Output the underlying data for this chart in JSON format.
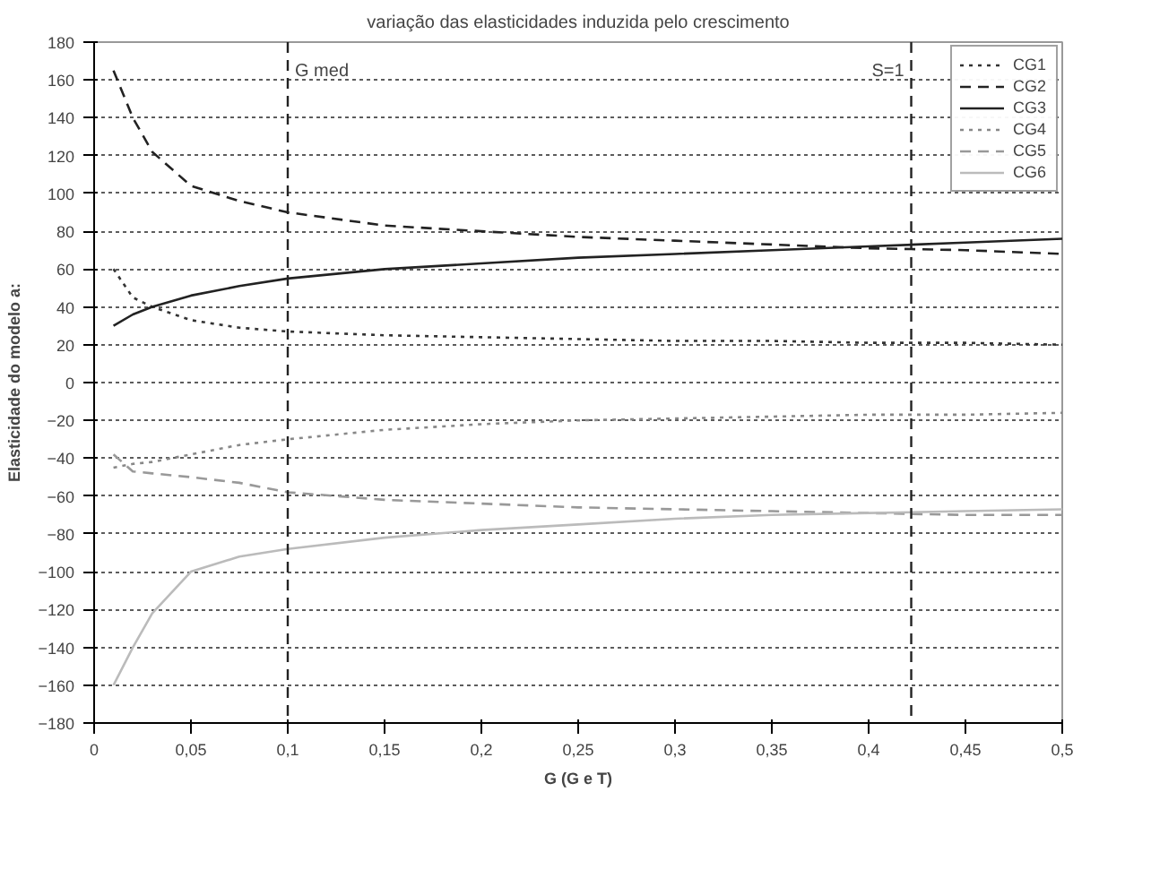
{
  "chart_data": {
    "type": "line",
    "title": "variação das elasticidades induzida pelo crescimento",
    "xlabel": "G (G e T)",
    "ylabel": "Elasticidade do modelo a:",
    "x": [
      0.01,
      0.02,
      0.03,
      0.05,
      0.075,
      0.1,
      0.15,
      0.2,
      0.25,
      0.3,
      0.35,
      0.4,
      0.45,
      0.5
    ],
    "series": [
      {
        "name": "CG1",
        "color": "#333333",
        "line_style": "dotted",
        "values": [
          60,
          45,
          40,
          33,
          29,
          27,
          25,
          24,
          23,
          22,
          22,
          21,
          21,
          20
        ]
      },
      {
        "name": "CG2",
        "color": "#222222",
        "line_style": "dashed",
        "values": [
          165,
          140,
          122,
          104,
          96,
          90,
          83,
          80,
          77,
          75,
          73,
          71,
          70,
          68
        ]
      },
      {
        "name": "CG3",
        "color": "#222222",
        "line_style": "solid",
        "values": [
          30,
          36,
          40,
          46,
          51,
          55,
          60,
          63,
          66,
          68,
          70,
          72,
          74,
          76
        ]
      },
      {
        "name": "CG4",
        "color": "#888888",
        "line_style": "dotted",
        "values": [
          -45,
          -43,
          -42,
          -38,
          -33,
          -30,
          -25,
          -22,
          -20,
          -19,
          -18,
          -17,
          -17,
          -16
        ]
      },
      {
        "name": "CG5",
        "color": "#999999",
        "line_style": "dashed",
        "values": [
          -38,
          -47,
          -48,
          -50,
          -53,
          -58,
          -62,
          -64,
          -66,
          -67,
          -68,
          -69,
          -70,
          -70
        ]
      },
      {
        "name": "CG6",
        "color": "#bbbbbb",
        "line_style": "solid",
        "values": [
          -160,
          -140,
          -122,
          -100,
          -92,
          -88,
          -82,
          -78,
          -75,
          -72,
          -70,
          -69,
          -68,
          -67
        ]
      }
    ],
    "xlim": [
      0,
      0.5
    ],
    "xticks": [
      {
        "value": 0,
        "label": "0"
      },
      {
        "value": 0.05,
        "label": "0,05"
      },
      {
        "value": 0.1,
        "label": "0,1"
      },
      {
        "value": 0.15,
        "label": "0,15"
      },
      {
        "value": 0.2,
        "label": "0,2"
      },
      {
        "value": 0.25,
        "label": "0,25"
      },
      {
        "value": 0.3,
        "label": "0,3"
      },
      {
        "value": 0.35,
        "label": "0,35"
      },
      {
        "value": 0.4,
        "label": "0,4"
      },
      {
        "value": 0.45,
        "label": "0,45"
      },
      {
        "value": 0.5,
        "label": "0,5"
      }
    ],
    "ylim": [
      -180,
      180
    ],
    "yticks": [
      -180,
      -160,
      -140,
      -120,
      -100,
      -80,
      -60,
      -40,
      -20,
      0,
      20,
      40,
      60,
      80,
      100,
      120,
      140,
      160,
      180
    ],
    "ref_lines": [
      {
        "axis": "x",
        "value": 0.1,
        "label": "G med",
        "line_style": "dashed",
        "color": "#222222"
      },
      {
        "axis": "x",
        "value": 0.422,
        "line_style": "dashed",
        "color": "#222222"
      }
    ],
    "annotations": [
      "S=1"
    ],
    "grid": "y",
    "legend": "top right",
    "marker": "none"
  }
}
